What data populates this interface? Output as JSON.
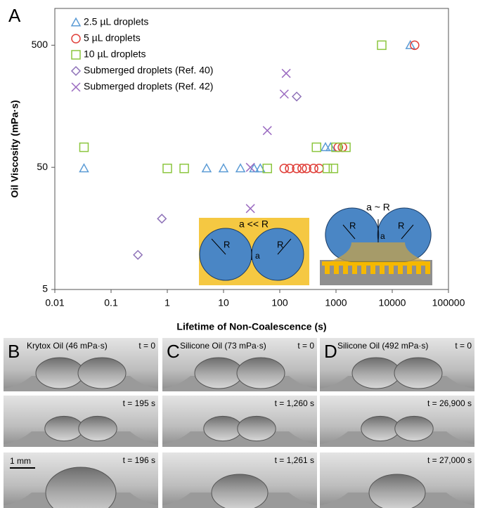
{
  "panel_label": "A",
  "chart_data": {
    "type": "scatter",
    "xlabel": "Lifetime of Non-Coalescence (s)",
    "ylabel": "Oil Viscosity (mPa·s)",
    "xscale": "log",
    "yscale": "log",
    "xlim": [
      0.01,
      100000
    ],
    "ylim": [
      5,
      1000
    ],
    "xticks": [
      0.01,
      0.1,
      1,
      10,
      100,
      1000,
      10000,
      100000
    ],
    "yticks": [
      5,
      50,
      500
    ],
    "legend": "upper left",
    "series": [
      {
        "name": "2.5 µL droplets",
        "color": "#5b9bd5",
        "marker": "triangle",
        "x": [
          0.033,
          5,
          10,
          20,
          35,
          45,
          650,
          800,
          21000
        ],
        "values": [
          49,
          49,
          49,
          49,
          49,
          49,
          73,
          73,
          500
        ]
      },
      {
        "name": "5 µL droplets",
        "color": "#e0403a",
        "marker": "circle",
        "x": [
          120,
          150,
          200,
          250,
          300,
          400,
          500,
          1100,
          1300,
          25000
        ],
        "values": [
          49,
          49,
          49,
          49,
          49,
          49,
          49,
          73,
          73,
          500
        ]
      },
      {
        "name": "10 µL droplets",
        "color": "#8cc63f",
        "marker": "square",
        "x": [
          0.033,
          1,
          2,
          60,
          700,
          900,
          450,
          1000,
          1500,
          6500
        ],
        "values": [
          73,
          49,
          49,
          49,
          49,
          49,
          73,
          73,
          73,
          500
        ]
      },
      {
        "name": "Submerged droplets (Ref. 40)",
        "color": "#8e72b8",
        "marker": "diamond",
        "x": [
          0.3,
          0.8,
          200
        ],
        "values": [
          9.6,
          19,
          190
        ]
      },
      {
        "name": "Submerged droplets (Ref. 42)",
        "color": "#9b6bc1",
        "marker": "cross",
        "x": [
          30,
          30,
          60,
          120,
          130
        ],
        "values": [
          50,
          23,
          100,
          199,
          294
        ]
      }
    ]
  },
  "insets": [
    {
      "labels": [
        "a << R",
        "R",
        "a",
        "R"
      ]
    },
    {
      "labels": [
        "a ~ R",
        "R",
        "a",
        "R"
      ]
    }
  ],
  "photo_panels": [
    {
      "letter": "B",
      "title": "Krytox Oil (46 mPa·s)",
      "times": [
        "t = 0",
        "t = 195 s",
        "t = 196 s"
      ]
    },
    {
      "letter": "C",
      "title": "Silicone Oil (73 mPa·s)",
      "times": [
        "t = 0",
        "t = 1,260 s",
        "t = 1,261 s"
      ]
    },
    {
      "letter": "D",
      "title": "Silicone Oil (492 mPa·s)",
      "times": [
        "t = 0",
        "t = 26,900 s",
        "t = 27,000 s"
      ]
    }
  ],
  "scale_bar": "1 mm"
}
